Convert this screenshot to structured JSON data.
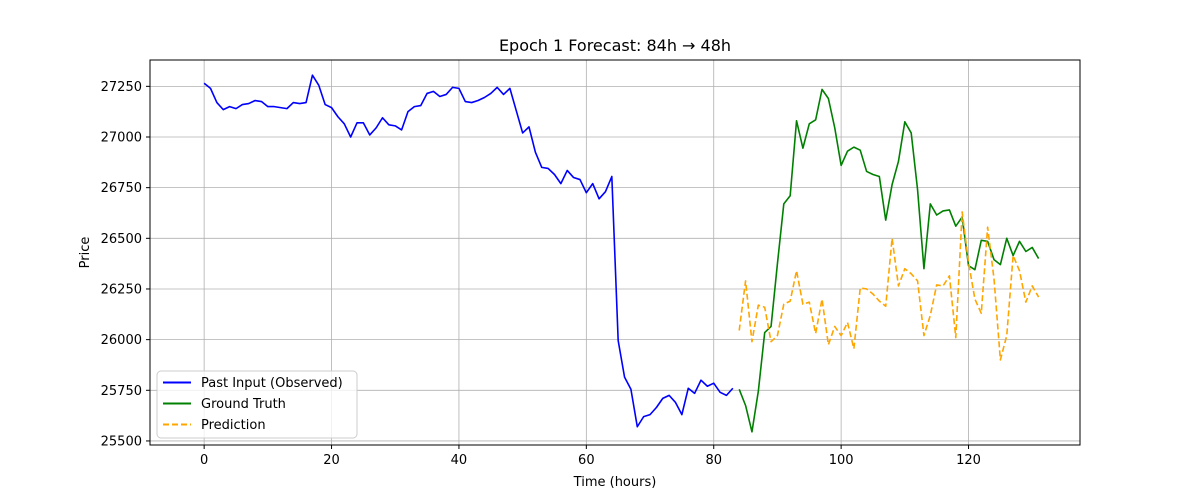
{
  "chart_data": {
    "type": "line",
    "title": "Epoch 1 Forecast: 84h → 48h",
    "xlabel": "Time (hours)",
    "ylabel": "Price",
    "xlim": [
      -8.5,
      137.5
    ],
    "ylim": [
      25480,
      27380
    ],
    "xticks": [
      0,
      20,
      40,
      60,
      80,
      100,
      120
    ],
    "yticks": [
      25500,
      25750,
      26000,
      26250,
      26500,
      26750,
      27000,
      27250
    ],
    "grid": true,
    "legend_position": "lower-left",
    "series": [
      {
        "name": "Past Input (Observed)",
        "color": "#0000ff",
        "style": "solid",
        "x_start": 0,
        "values": [
          27265,
          27240,
          27170,
          27135,
          27150,
          27140,
          27160,
          27165,
          27180,
          27175,
          27150,
          27150,
          27145,
          27140,
          27170,
          27165,
          27170,
          27305,
          27255,
          27160,
          27145,
          27100,
          27065,
          27000,
          27070,
          27070,
          27010,
          27045,
          27095,
          27060,
          27055,
          27035,
          27125,
          27150,
          27155,
          27215,
          27225,
          27200,
          27210,
          27245,
          27240,
          27175,
          27170,
          27180,
          27195,
          27215,
          27245,
          27210,
          27240,
          27130,
          27020,
          27050,
          26925,
          26850,
          26845,
          26815,
          26770,
          26835,
          26800,
          26790,
          26725,
          26770,
          26695,
          26730,
          26805,
          25995,
          25815,
          25755,
          25570,
          25620,
          25630,
          25665,
          25710,
          25725,
          25690,
          25630,
          25760,
          25735,
          25800,
          25770,
          25785,
          25740,
          25725,
          25760
        ]
      },
      {
        "name": "Ground Truth",
        "color": "#008000",
        "style": "solid",
        "x_start": 84,
        "values": [
          25755,
          25675,
          25545,
          25745,
          26035,
          26065,
          26375,
          26670,
          26710,
          27080,
          26945,
          27065,
          27085,
          27235,
          27190,
          27045,
          26860,
          26930,
          26950,
          26935,
          26830,
          26815,
          26805,
          26590,
          26765,
          26880,
          27075,
          27020,
          26740,
          26350,
          26670,
          26615,
          26635,
          26640,
          26560,
          26605,
          26365,
          26345,
          26490,
          26485,
          26395,
          26370,
          26500,
          26415,
          26485,
          26435,
          26455,
          26400
        ]
      },
      {
        "name": "Prediction",
        "color": "#ffa500",
        "style": "dashed",
        "x_start": 84,
        "values": [
          26045,
          26290,
          25990,
          26170,
          26160,
          25990,
          26020,
          26175,
          26190,
          26340,
          26175,
          26185,
          26030,
          26200,
          25975,
          26065,
          26020,
          26085,
          25955,
          26255,
          26250,
          26225,
          26190,
          26165,
          26500,
          26265,
          26350,
          26325,
          26290,
          26020,
          26120,
          26270,
          26265,
          26315,
          26010,
          26630,
          26380,
          26200,
          26130,
          26555,
          26300,
          25900,
          26020,
          26415,
          26340,
          26185,
          26265,
          26210
        ]
      }
    ]
  }
}
